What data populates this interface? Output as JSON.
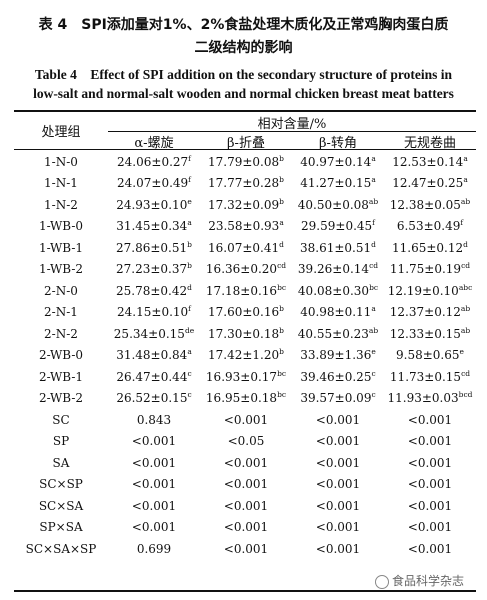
{
  "title_cn_line1": "表 4　SPI添加量对1%、2%食盐处理木质化及正常鸡胸肉蛋白质",
  "title_cn_line2": "二级结构的影响",
  "title_en_line1": "Table 4　Effect of SPI addition on the secondary structure of proteins in",
  "title_en_line2": "low-salt and normal-salt wooden and normal chicken breast meat batters",
  "headers": {
    "group": "处理组",
    "span": "相对含量/%",
    "cols": [
      "α-螺旋",
      "β-折叠",
      "β-转角",
      "无规卷曲"
    ]
  },
  "rows": [
    {
      "group": "1-N-0",
      "cells": [
        {
          "v": "24.06±0.27",
          "s": "f"
        },
        {
          "v": "17.79±0.08",
          "s": "b"
        },
        {
          "v": "40.97±0.14",
          "s": "a"
        },
        {
          "v": "12.53±0.14",
          "s": "a"
        }
      ]
    },
    {
      "group": "1-N-1",
      "cells": [
        {
          "v": "24.07±0.49",
          "s": "f"
        },
        {
          "v": "17.77±0.28",
          "s": "b"
        },
        {
          "v": "41.27±0.15",
          "s": "a"
        },
        {
          "v": "12.47±0.25",
          "s": "a"
        }
      ]
    },
    {
      "group": "1-N-2",
      "cells": [
        {
          "v": "24.93±0.10",
          "s": "e"
        },
        {
          "v": "17.32±0.09",
          "s": "b"
        },
        {
          "v": "40.50±0.08",
          "s": "ab"
        },
        {
          "v": "12.38±0.05",
          "s": "ab"
        }
      ]
    },
    {
      "group": "1-WB-0",
      "cells": [
        {
          "v": "31.45±0.34",
          "s": "a"
        },
        {
          "v": "23.58±0.93",
          "s": "a"
        },
        {
          "v": "29.59±0.45",
          "s": "f"
        },
        {
          "v": "6.53±0.49",
          "s": "f"
        }
      ]
    },
    {
      "group": "1-WB-1",
      "cells": [
        {
          "v": "27.86±0.51",
          "s": "b"
        },
        {
          "v": "16.07±0.41",
          "s": "d"
        },
        {
          "v": "38.61±0.51",
          "s": "d"
        },
        {
          "v": "11.65±0.12",
          "s": "d"
        }
      ]
    },
    {
      "group": "1-WB-2",
      "cells": [
        {
          "v": "27.23±0.37",
          "s": "b"
        },
        {
          "v": "16.36±0.20",
          "s": "cd"
        },
        {
          "v": "39.26±0.14",
          "s": "cd"
        },
        {
          "v": "11.75±0.19",
          "s": "cd"
        }
      ]
    },
    {
      "group": "2-N-0",
      "cells": [
        {
          "v": "25.78±0.42",
          "s": "d"
        },
        {
          "v": "17.18±0.16",
          "s": "bc"
        },
        {
          "v": "40.08±0.30",
          "s": "bc"
        },
        {
          "v": "12.19±0.10",
          "s": "abc"
        }
      ]
    },
    {
      "group": "2-N-1",
      "cells": [
        {
          "v": "24.15±0.10",
          "s": "f"
        },
        {
          "v": "17.60±0.16",
          "s": "b"
        },
        {
          "v": "40.98±0.11",
          "s": "a"
        },
        {
          "v": "12.37±0.12",
          "s": "ab"
        }
      ]
    },
    {
      "group": "2-N-2",
      "cells": [
        {
          "v": "25.34±0.15",
          "s": "de"
        },
        {
          "v": "17.30±0.18",
          "s": "b"
        },
        {
          "v": "40.55±0.23",
          "s": "ab"
        },
        {
          "v": "12.33±0.15",
          "s": "ab"
        }
      ]
    },
    {
      "group": "2-WB-0",
      "cells": [
        {
          "v": "31.48±0.84",
          "s": "a"
        },
        {
          "v": "17.42±1.20",
          "s": "b"
        },
        {
          "v": "33.89±1.36",
          "s": "e"
        },
        {
          "v": "9.58±0.65",
          "s": "e"
        }
      ]
    },
    {
      "group": "2-WB-1",
      "cells": [
        {
          "v": "26.47±0.44",
          "s": "c"
        },
        {
          "v": "16.93±0.17",
          "s": "bc"
        },
        {
          "v": "39.46±0.25",
          "s": "c"
        },
        {
          "v": "11.73±0.15",
          "s": "cd"
        }
      ]
    },
    {
      "group": "2-WB-2",
      "cells": [
        {
          "v": "26.52±0.15",
          "s": "c"
        },
        {
          "v": "16.95±0.18",
          "s": "bc"
        },
        {
          "v": "39.57±0.09",
          "s": "c"
        },
        {
          "v": "11.93±0.03",
          "s": "bcd"
        }
      ]
    },
    {
      "group": "SC",
      "cells": [
        {
          "v": "0.843",
          "s": ""
        },
        {
          "v": "<0.001",
          "s": ""
        },
        {
          "v": "<0.001",
          "s": ""
        },
        {
          "v": "<0.001",
          "s": ""
        }
      ]
    },
    {
      "group": "SP",
      "cells": [
        {
          "v": "<0.001",
          "s": ""
        },
        {
          "v": "<0.05",
          "s": ""
        },
        {
          "v": "<0.001",
          "s": ""
        },
        {
          "v": "<0.001",
          "s": ""
        }
      ]
    },
    {
      "group": "SA",
      "cells": [
        {
          "v": "<0.001",
          "s": ""
        },
        {
          "v": "<0.001",
          "s": ""
        },
        {
          "v": "<0.001",
          "s": ""
        },
        {
          "v": "<0.001",
          "s": ""
        }
      ]
    },
    {
      "group": "SC×SP",
      "cells": [
        {
          "v": "<0.001",
          "s": ""
        },
        {
          "v": "<0.001",
          "s": ""
        },
        {
          "v": "<0.001",
          "s": ""
        },
        {
          "v": "<0.001",
          "s": ""
        }
      ]
    },
    {
      "group": "SC×SA",
      "cells": [
        {
          "v": "<0.001",
          "s": ""
        },
        {
          "v": "<0.001",
          "s": ""
        },
        {
          "v": "<0.001",
          "s": ""
        },
        {
          "v": "<0.001",
          "s": ""
        }
      ]
    },
    {
      "group": "SP×SA",
      "cells": [
        {
          "v": "<0.001",
          "s": ""
        },
        {
          "v": "<0.001",
          "s": ""
        },
        {
          "v": "<0.001",
          "s": ""
        },
        {
          "v": "<0.001",
          "s": ""
        }
      ]
    },
    {
      "group": "SC×SA×SP",
      "cells": [
        {
          "v": "0.699",
          "s": ""
        },
        {
          "v": "<0.001",
          "s": ""
        },
        {
          "v": "<0.001",
          "s": ""
        },
        {
          "v": "<0.001",
          "s": ""
        }
      ]
    }
  ],
  "watermark": "食品科学杂志"
}
